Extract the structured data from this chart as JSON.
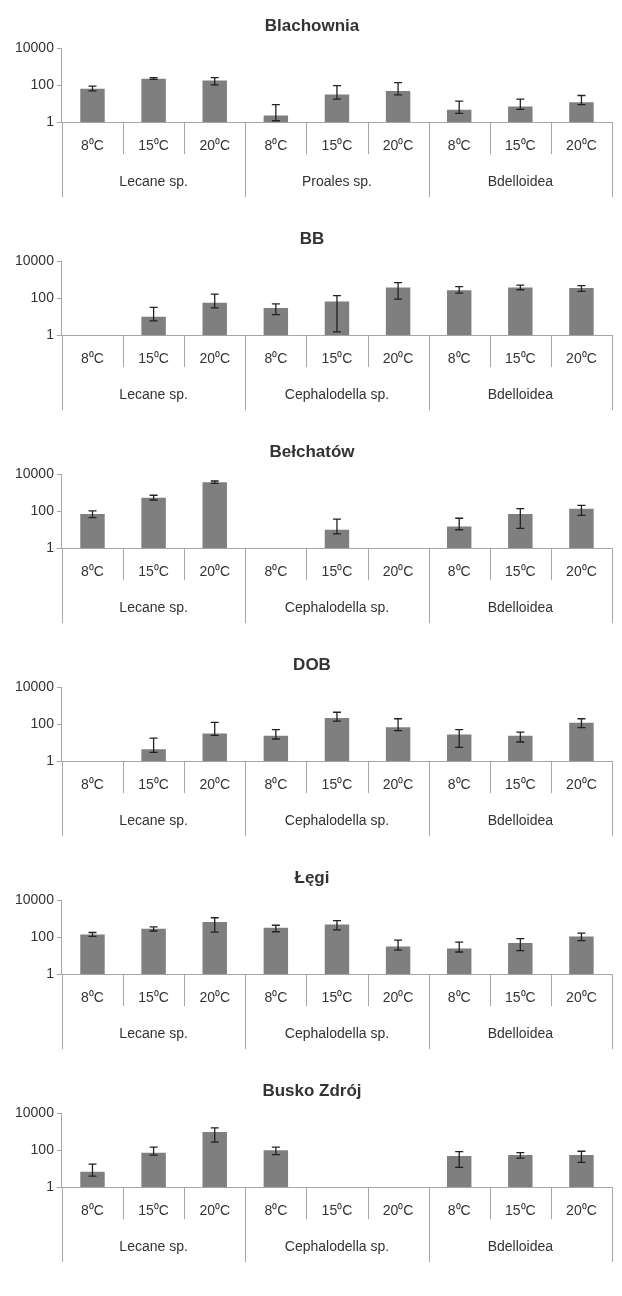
{
  "chart_data": [
    {
      "type": "bar",
      "title": "Blachownia",
      "categories": [
        "8⁰C",
        "15⁰C",
        "20⁰C",
        "8⁰C",
        "15⁰C",
        "20⁰C",
        "8⁰C",
        "15⁰C",
        "20⁰C"
      ],
      "values": [
        66,
        230,
        180,
        2.3,
        32,
        49,
        4.7,
        7.2,
        12
      ],
      "errors": [
        [
          50,
          90
        ],
        [
          210,
          260
        ],
        [
          105,
          260
        ],
        [
          1.2,
          9
        ],
        [
          18,
          95
        ],
        [
          30,
          140
        ],
        [
          3,
          14
        ],
        [
          5,
          18
        ],
        [
          9,
          28
        ]
      ],
      "color": "#7f7f7f",
      "ylim": [
        1,
        10000
      ],
      "yticks": [
        1,
        100,
        10000
      ],
      "log": "y",
      "grid": false,
      "legend": false,
      "annotations": [
        "Lecane sp.",
        "Proales sp.",
        "Bdelloidea"
      ]
    },
    {
      "type": "bar",
      "title": "BB",
      "categories": [
        "8⁰C",
        "15⁰C",
        "20⁰C",
        "8⁰C",
        "15⁰C",
        "20⁰C",
        "8⁰C",
        "15⁰C",
        "20⁰C"
      ],
      "values": [
        null,
        10,
        57,
        30,
        68,
        380,
        270,
        380,
        360
      ],
      "errors": [
        null,
        [
          6,
          32
        ],
        [
          30,
          170
        ],
        [
          13,
          50
        ],
        [
          1.5,
          140
        ],
        [
          90,
          700
        ],
        [
          190,
          430
        ],
        [
          290,
          520
        ],
        [
          240,
          490
        ]
      ],
      "color": "#7f7f7f",
      "ylim": [
        1,
        10000
      ],
      "yticks": [
        1,
        100,
        10000
      ],
      "log": "y",
      "grid": false,
      "legend": false,
      "annotations": [
        "Lecane sp.",
        "Cephalodella sp.",
        "Bdelloidea"
      ]
    },
    {
      "type": "bar",
      "title": "Bełchatów",
      "categories": [
        "8⁰C",
        "15⁰C",
        "20⁰C",
        "8⁰C",
        "15⁰C",
        "20⁰C",
        "8⁰C",
        "15⁰C",
        "20⁰C"
      ],
      "values": [
        72,
        550,
        3700,
        null,
        10,
        null,
        15,
        72,
        136
      ],
      "errors": [
        [
          45,
          105
        ],
        [
          410,
          740
        ],
        [
          3250,
          4400
        ],
        null,
        [
          6,
          38
        ],
        null,
        [
          10,
          42
        ],
        [
          12,
          140
        ],
        [
          60,
          210
        ]
      ],
      "color": "#7f7f7f",
      "ylim": [
        1,
        10000
      ],
      "yticks": [
        1,
        100,
        10000
      ],
      "log": "y",
      "grid": false,
      "legend": false,
      "annotations": [
        "Lecane sp.",
        "Cephalodella sp.",
        "Bdelloidea"
      ]
    },
    {
      "type": "bar",
      "title": "DOB",
      "categories": [
        "8⁰C",
        "15⁰C",
        "20⁰C",
        "8⁰C",
        "15⁰C",
        "20⁰C",
        "8⁰C",
        "15⁰C",
        "20⁰C"
      ],
      "values": [
        null,
        4.5,
        32,
        24,
        220,
        70,
        28,
        24,
        120
      ],
      "errors": [
        null,
        [
          3,
          18
        ],
        [
          25,
          127
        ],
        [
          16,
          52
        ],
        [
          150,
          450
        ],
        [
          45,
          200
        ],
        [
          5.6,
          52
        ],
        [
          11,
          38
        ],
        [
          66,
          200
        ]
      ],
      "color": "#7f7f7f",
      "ylim": [
        1,
        10000
      ],
      "yticks": [
        1,
        100,
        10000
      ],
      "log": "y",
      "grid": false,
      "legend": false,
      "annotations": [
        "Lecane sp.",
        "Cephalodella sp.",
        "Bdelloidea"
      ]
    },
    {
      "type": "bar",
      "title": "Łęgi",
      "categories": [
        "8⁰C",
        "15⁰C",
        "20⁰C",
        "8⁰C",
        "15⁰C",
        "20⁰C",
        "8⁰C",
        "15⁰C",
        "20⁰C"
      ],
      "values": [
        144,
        290,
        680,
        330,
        500,
        32,
        25,
        49,
        112
      ],
      "errors": [
        [
          112,
          182
        ],
        [
          220,
          370
        ],
        [
          190,
          1150
        ],
        [
          200,
          450
        ],
        [
          250,
          810
        ],
        [
          20,
          70
        ],
        [
          16,
          55
        ],
        [
          19,
          84
        ],
        [
          66,
          170
        ]
      ],
      "color": "#7f7f7f",
      "ylim": [
        1,
        10000
      ],
      "yticks": [
        1,
        100,
        10000
      ],
      "log": "y",
      "grid": false,
      "legend": false,
      "annotations": [
        "Lecane sp.",
        "Cephalodella sp.",
        "Bdelloidea"
      ]
    },
    {
      "type": "bar",
      "title": "Busko Zdrój",
      "categories": [
        "8⁰C",
        "15⁰C",
        "20⁰C",
        "8⁰C",
        "15⁰C",
        "20⁰C",
        "8⁰C",
        "15⁰C",
        "20⁰C"
      ],
      "values": [
        6.8,
        74,
        970,
        100,
        null,
        null,
        49,
        55,
        55
      ],
      "errors": [
        [
          4,
          18
        ],
        [
          55,
          150
        ],
        [
          280,
          1650
        ],
        [
          59,
          150
        ],
        null,
        null,
        [
          12,
          84
        ],
        [
          38,
          74
        ],
        [
          22,
          89
        ]
      ],
      "color": "#7f7f7f",
      "ylim": [
        1,
        10000
      ],
      "yticks": [
        1,
        100,
        10000
      ],
      "log": "y",
      "grid": false,
      "legend": false,
      "annotations": [
        "Lecane sp.",
        "Cephalodella sp.",
        "Bdelloidea"
      ]
    }
  ]
}
